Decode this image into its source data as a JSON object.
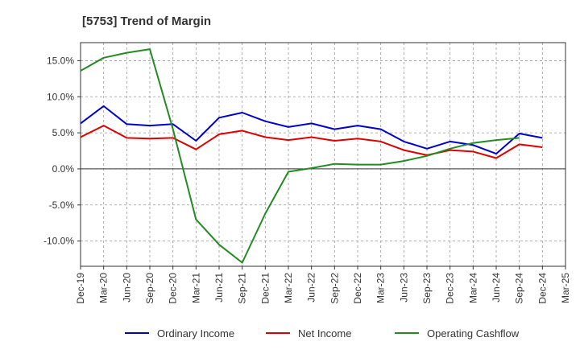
{
  "chart_data": {
    "type": "line",
    "title": "[5753]  Trend of Margin",
    "xlabel": "",
    "ylabel": "",
    "categories": [
      "Dec-19",
      "Mar-20",
      "Jun-20",
      "Sep-20",
      "Dec-20",
      "Mar-21",
      "Jun-21",
      "Sep-21",
      "Dec-21",
      "Mar-22",
      "Jun-22",
      "Sep-22",
      "Dec-22",
      "Mar-23",
      "Jun-23",
      "Sep-23",
      "Dec-23",
      "Mar-24",
      "Jun-24",
      "Sep-24",
      "Dec-24",
      "Mar-25"
    ],
    "ylim": [
      -13.5,
      17.5
    ],
    "yticks": [
      -10.0,
      -5.0,
      0.0,
      5.0,
      10.0,
      15.0
    ],
    "ytick_labels": [
      "-10.0%",
      "-5.0%",
      "0.0%",
      "5.0%",
      "10.0%",
      "15.0%"
    ],
    "grid": true,
    "legend_position": "bottom",
    "series": [
      {
        "name": "Ordinary Income",
        "color": "#0000cc",
        "values": [
          6.3,
          8.7,
          6.2,
          6.0,
          6.2,
          3.9,
          7.1,
          7.8,
          6.6,
          5.8,
          6.3,
          5.5,
          6.0,
          5.5,
          3.8,
          2.8,
          3.8,
          3.3,
          2.1,
          4.9,
          4.3,
          null
        ]
      },
      {
        "name": "Net Income",
        "color": "#dd0000",
        "values": [
          4.4,
          6.0,
          4.3,
          4.2,
          4.3,
          2.7,
          4.8,
          5.3,
          4.4,
          4.0,
          4.4,
          3.9,
          4.2,
          3.8,
          2.6,
          1.9,
          2.6,
          2.4,
          1.5,
          3.4,
          3.0,
          null
        ]
      },
      {
        "name": "Operating Cashflow",
        "color": "#228b22",
        "values": [
          13.6,
          15.4,
          16.1,
          16.6,
          5.5,
          -7.0,
          -10.5,
          -13.0,
          -6.2,
          -0.4,
          0.1,
          0.7,
          0.6,
          0.6,
          1.1,
          1.8,
          2.8,
          3.6,
          4.0,
          4.3,
          null,
          null
        ]
      }
    ]
  }
}
